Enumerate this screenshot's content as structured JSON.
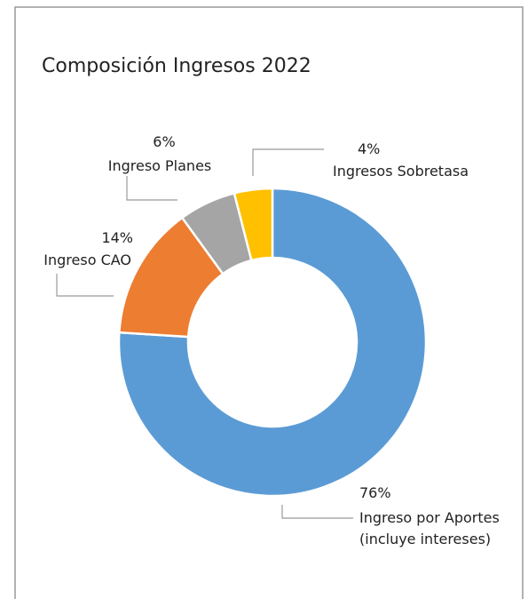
{
  "chart_data": {
    "type": "donut",
    "title": "Composición Ingresos 2022",
    "categories": [
      "Ingreso por Aportes\n(incluye intereses)",
      "Ingreso CAO",
      "Ingreso Planes",
      "Ingresos Sobretasa"
    ],
    "values": [
      76,
      14,
      6,
      4
    ],
    "value_labels": [
      "76%",
      "14%",
      "6%",
      "4%"
    ],
    "colors": [
      "#5b9bd5",
      "#ed7d31",
      "#a5a5a5",
      "#ffc000"
    ]
  }
}
